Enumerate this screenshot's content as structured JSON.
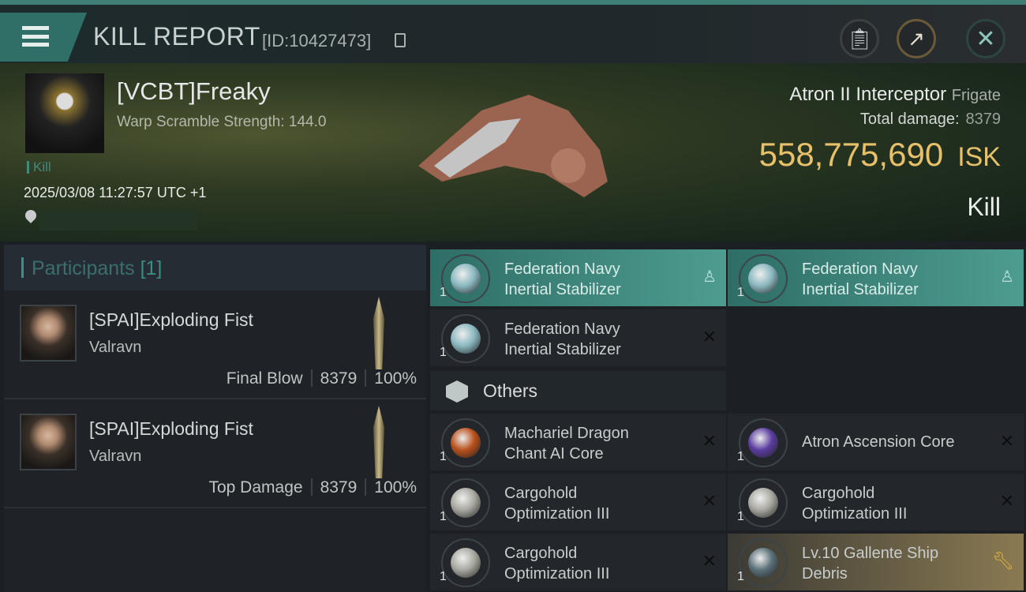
{
  "header": {
    "title": "KILL REPORT",
    "report_id": "[ID:10427473]",
    "buttons": [
      "clipboard",
      "share",
      "close"
    ]
  },
  "victim": {
    "name": "[VCBT]Freaky",
    "warp_scramble": "Warp Scramble Strength: 144.0",
    "tag": "Kill",
    "datetime": "2025/03/08 11:27:57 UTC +1",
    "ship": "Atron II Interceptor",
    "ship_class": "Frigate",
    "total_damage_label": "Total damage:",
    "total_damage": "8379",
    "isk_value": "558,775,690",
    "isk_unit": "ISK",
    "result": "Kill"
  },
  "participants": {
    "label": "Participants",
    "count": "[1]",
    "rows": [
      {
        "name": "[SPAI]Exploding Fist",
        "ship": "Valravn",
        "role": "Final Blow",
        "damage": "8379",
        "percent": "100%"
      },
      {
        "name": "[SPAI]Exploding Fist",
        "ship": "Valravn",
        "role": "Top Damage",
        "damage": "8379",
        "percent": "100%"
      }
    ]
  },
  "items": {
    "fitted": [
      {
        "line1": "Federation Navy",
        "line2": "Inertial Stabilizer",
        "qty": "1",
        "status": "fitted"
      },
      {
        "line1": "Federation Navy",
        "line2": "Inertial Stabilizer",
        "qty": "1",
        "status": "fitted"
      },
      {
        "line1": "Federation Navy",
        "line2": "Inertial Stabilizer",
        "qty": "1",
        "status": "destroyed"
      }
    ],
    "others_label": "Others",
    "others": [
      {
        "line1": "Machariel Dragon",
        "line2": "Chant AI Core",
        "qty": "1",
        "status": "destroyed"
      },
      {
        "line1": "Atron Ascension Core",
        "line2": "",
        "qty": "1",
        "status": "destroyed"
      },
      {
        "line1": "Cargohold",
        "line2": "Optimization III",
        "qty": "1",
        "status": "destroyed"
      },
      {
        "line1": "Cargohold",
        "line2": "Optimization III",
        "qty": "1",
        "status": "destroyed"
      },
      {
        "line1": "Cargohold",
        "line2": "Optimization III",
        "qty": "1",
        "status": "destroyed"
      },
      {
        "line1": "Lv.10 Gallente Ship",
        "line2": "Debris",
        "qty": "1",
        "status": "dropped"
      }
    ]
  },
  "colors": {
    "accent": "#3d8c84",
    "isk": "#e8c06a",
    "fitted_bg": "#4e9c90",
    "dropped_bg": "#8a7a52"
  }
}
